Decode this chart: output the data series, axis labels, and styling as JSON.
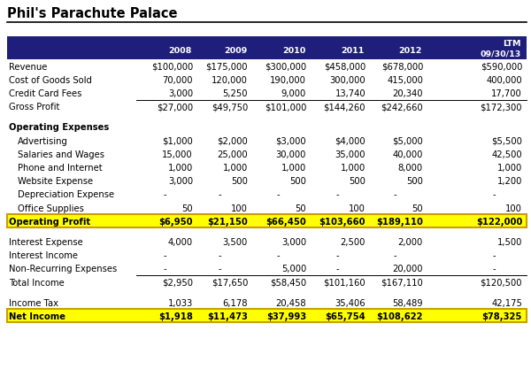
{
  "title": "Phil's Parachute Palace",
  "header_bg": "#1F1F7B",
  "header_text_color": "#FFFFFF",
  "highlight_bg": "#FFFF00",
  "highlight_border": "#C8A000",
  "rows": [
    {
      "label": "Revenue",
      "values": [
        "$100,000",
        "$175,000",
        "$300,000",
        "$458,000",
        "$678,000",
        "$590,000"
      ],
      "indent": 0,
      "bold": false,
      "style": "normal"
    },
    {
      "label": "Cost of Goods Sold",
      "values": [
        "70,000",
        "120,000",
        "190,000",
        "300,000",
        "415,000",
        "400,000"
      ],
      "indent": 0,
      "bold": false,
      "style": "normal"
    },
    {
      "label": "Credit Card Fees",
      "values": [
        "3,000",
        "5,250",
        "9,000",
        "13,740",
        "20,340",
        "17,700"
      ],
      "indent": 0,
      "bold": false,
      "style": "normal"
    },
    {
      "label": "Gross Profit",
      "values": [
        "$27,000",
        "$49,750",
        "$101,000",
        "$144,260",
        "$242,660",
        "$172,300"
      ],
      "indent": 0,
      "bold": false,
      "style": "line_above"
    },
    {
      "label": "",
      "values": [
        "",
        "",
        "",
        "",
        "",
        ""
      ],
      "indent": 0,
      "bold": false,
      "style": "spacer"
    },
    {
      "label": "Operating Expenses",
      "values": [
        "",
        "",
        "",
        "",
        "",
        ""
      ],
      "indent": 0,
      "bold": true,
      "style": "normal"
    },
    {
      "label": "Advertising",
      "values": [
        "$1,000",
        "$2,000",
        "$3,000",
        "$4,000",
        "$5,000",
        "$5,500"
      ],
      "indent": 1,
      "bold": false,
      "style": "normal"
    },
    {
      "label": "Salaries and Wages",
      "values": [
        "15,000",
        "25,000",
        "30,000",
        "35,000",
        "40,000",
        "42,500"
      ],
      "indent": 1,
      "bold": false,
      "style": "normal"
    },
    {
      "label": "Phone and Internet",
      "values": [
        "1,000",
        "1,000",
        "1,000",
        "1,000",
        "8,000",
        "1,000"
      ],
      "indent": 1,
      "bold": false,
      "style": "normal"
    },
    {
      "label": "Website Expense",
      "values": [
        "3,000",
        "500",
        "500",
        "500",
        "500",
        "1,200"
      ],
      "indent": 1,
      "bold": false,
      "style": "normal"
    },
    {
      "label": "Depreciation Expense",
      "values": [
        "-",
        "-",
        "-",
        "-",
        "-",
        "-"
      ],
      "indent": 1,
      "bold": false,
      "style": "normal"
    },
    {
      "label": "Office Supplies",
      "values": [
        "50",
        "100",
        "50",
        "100",
        "50",
        "100"
      ],
      "indent": 1,
      "bold": false,
      "style": "normal"
    },
    {
      "label": "Operating Profit",
      "values": [
        "$6,950",
        "$21,150",
        "$66,450",
        "$103,660",
        "$189,110",
        "$122,000"
      ],
      "indent": 0,
      "bold": true,
      "style": "highlight"
    },
    {
      "label": "",
      "values": [
        "",
        "",
        "",
        "",
        "",
        ""
      ],
      "indent": 0,
      "bold": false,
      "style": "spacer"
    },
    {
      "label": "Interest Expense",
      "values": [
        "4,000",
        "3,500",
        "3,000",
        "2,500",
        "2,000",
        "1,500"
      ],
      "indent": 0,
      "bold": false,
      "style": "normal"
    },
    {
      "label": "Interest Income",
      "values": [
        "-",
        "-",
        "-",
        "-",
        "-",
        "-"
      ],
      "indent": 0,
      "bold": false,
      "style": "normal"
    },
    {
      "label": "Non-Recurring Expenses",
      "values": [
        "-",
        "-",
        "5,000",
        "-",
        "20,000",
        "-"
      ],
      "indent": 0,
      "bold": false,
      "style": "normal"
    },
    {
      "label": "Total Income",
      "values": [
        "$2,950",
        "$17,650",
        "$58,450",
        "$101,160",
        "$167,110",
        "$120,500"
      ],
      "indent": 0,
      "bold": false,
      "style": "line_above"
    },
    {
      "label": "",
      "values": [
        "",
        "",
        "",
        "",
        "",
        ""
      ],
      "indent": 0,
      "bold": false,
      "style": "spacer"
    },
    {
      "label": "Income Tax",
      "values": [
        "1,033",
        "6,178",
        "20,458",
        "35,406",
        "58,489",
        "42,175"
      ],
      "indent": 0,
      "bold": false,
      "style": "normal"
    },
    {
      "label": "Net Income",
      "values": [
        "$1,918",
        "$11,473",
        "$37,993",
        "$65,754",
        "$108,622",
        "$78,325"
      ],
      "indent": 0,
      "bold": true,
      "style": "highlight"
    }
  ],
  "col_headers": [
    "2008",
    "2009",
    "2010",
    "2011",
    "2012",
    "LTM\n09/30/13"
  ],
  "figsize": [
    6.0,
    4.27
  ],
  "dpi": 100
}
